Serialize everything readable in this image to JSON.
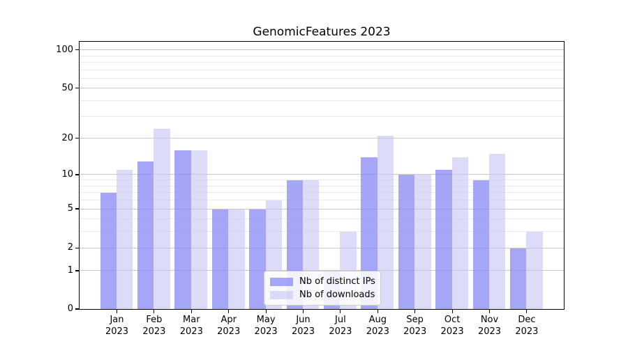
{
  "chart_data": {
    "type": "bar",
    "title": "GenomicFeatures 2023",
    "categories": [
      "Jan",
      "Feb",
      "Mar",
      "Apr",
      "May",
      "Jun",
      "Jul",
      "Aug",
      "Sep",
      "Oct",
      "Nov",
      "Dec"
    ],
    "category_year": "2023",
    "series": [
      {
        "name": "Nb of distinct IPs",
        "values": [
          7,
          13,
          16,
          5,
          5,
          9,
          1,
          14,
          10,
          11,
          9,
          2
        ],
        "color": "rgba(135,135,247,0.74)"
      },
      {
        "name": "Nb of downloads",
        "values": [
          11,
          24,
          16,
          5,
          6,
          9,
          3,
          21,
          10,
          14,
          15,
          3
        ],
        "color": "rgba(198,198,246,0.62)"
      }
    ],
    "yscale": "log1p",
    "yticks": [
      0,
      1,
      2,
      5,
      10,
      20,
      50,
      100
    ],
    "yticks_minor": [
      3,
      4,
      6,
      7,
      8,
      9,
      30,
      40,
      60,
      70,
      80,
      90
    ],
    "ylim": [
      0,
      117
    ],
    "xlabel": "",
    "ylabel": "",
    "grid": true,
    "legend_position": "lower center"
  },
  "colors": {
    "grid_major": "#c8c8c8",
    "grid_minor": "#ebebeb",
    "spine": "#000000",
    "background": "#ffffff"
  }
}
